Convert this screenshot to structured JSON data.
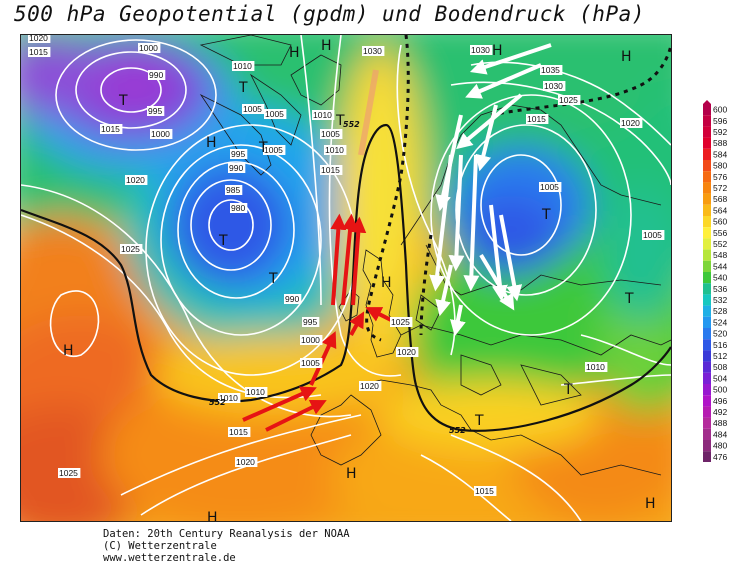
{
  "title": "500 hPa Geopotential (gpdm) und Bodendruck (hPa)",
  "footer": {
    "line1": "Daten: 20th Century Reanalysis der NOAA",
    "line2": "(C) Wetterzentrale",
    "line3": "www.wetterzentrale.de"
  },
  "scale": {
    "values": [
      "600",
      "596",
      "592",
      "588",
      "584",
      "580",
      "576",
      "572",
      "568",
      "564",
      "560",
      "556",
      "552",
      "548",
      "544",
      "540",
      "536",
      "532",
      "528",
      "524",
      "520",
      "516",
      "512",
      "508",
      "504",
      "500",
      "496",
      "492",
      "488",
      "484",
      "480",
      "476"
    ],
    "colors": [
      "#b4004a",
      "#c40042",
      "#d2003a",
      "#e0002c",
      "#ec1d20",
      "#f24a18",
      "#f66a12",
      "#f7850f",
      "#f89c10",
      "#faba18",
      "#fcd828",
      "#fff03c",
      "#e2f040",
      "#b6e63a",
      "#7ed63a",
      "#3ec83a",
      "#20c090",
      "#18c8c0",
      "#20b0e6",
      "#2498f0",
      "#2a7aee",
      "#2e58e6",
      "#3a3ad8",
      "#5a2ad6",
      "#7a20d6",
      "#9818d0",
      "#b014c8",
      "#b61cb2",
      "#b42a9c",
      "#a22e8c",
      "#8c2a7c",
      "#6e2468"
    ]
  },
  "map_labels": {
    "pressure": [
      "1020",
      "1015",
      "1000",
      "990",
      "1000",
      "1010",
      "1005",
      "1005",
      "995",
      "1005",
      "1030",
      "1015",
      "995",
      "990",
      "985",
      "980",
      "1010",
      "1015",
      "1020",
      "1025",
      "1005",
      "1010",
      "990",
      "995",
      "1000",
      "1005",
      "1010",
      "1030",
      "1035",
      "1030",
      "1025",
      "1015",
      "1020",
      "1005",
      "1005",
      "1025",
      "1020",
      "1010",
      "1020",
      "1010",
      "1015",
      "1020",
      "1025",
      "1015"
    ],
    "centers": [
      "H",
      "T",
      "T",
      "H",
      "T",
      "T",
      "T",
      "T",
      "T",
      "H",
      "H",
      "H",
      "H",
      "T",
      "H",
      "T",
      "T",
      "H",
      "H",
      "H"
    ],
    "geopotential": [
      "552",
      "552",
      "552"
    ]
  },
  "legend_labels": {
    "pressure": "Bodendruck (hPa)",
    "geopotential": "500 hPa Geopotential (gpdm)"
  },
  "colors": {
    "background": "#ffffff",
    "isobar": "#ffffff",
    "arrow_warm": "#e61414",
    "arrow_cold": "#ffffff"
  }
}
